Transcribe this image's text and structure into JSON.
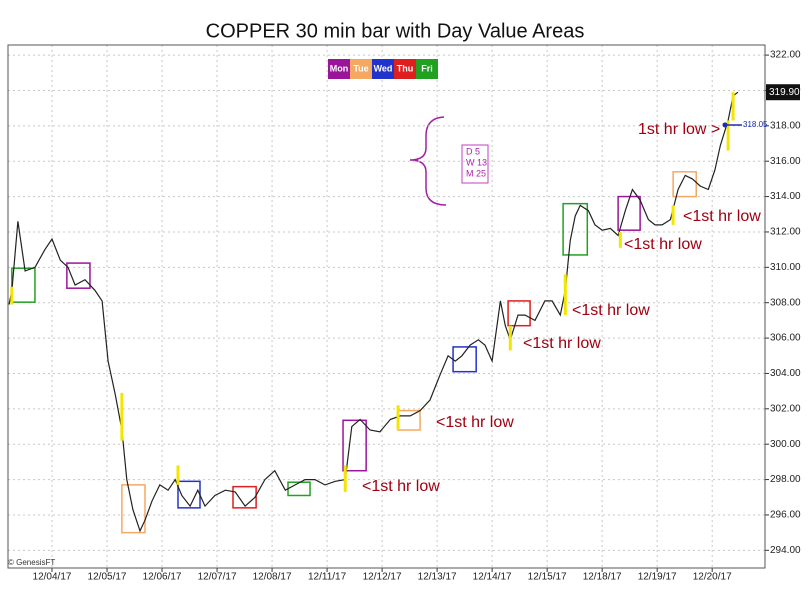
{
  "chart_data": {
    "type": "line",
    "title": "COPPER 30 min bar with Day Value Areas",
    "source": "© GenesisFT",
    "legend": [
      {
        "name": "Mon",
        "color": "#9a159a"
      },
      {
        "name": "Tue",
        "color": "#f5a862"
      },
      {
        "name": "Wed",
        "color": "#2233cc"
      },
      {
        "name": "Thu",
        "color": "#dd1f1f"
      },
      {
        "name": "Fri",
        "color": "#22a022"
      }
    ],
    "x": [
      -0.78,
      -0.73,
      -0.62,
      -0.49,
      -0.31,
      -0.13,
      0,
      0.15,
      0.29,
      0.42,
      0.6,
      0.78,
      0.91,
      1.02,
      1.15,
      1.27,
      1.36,
      1.47,
      1.6,
      1.69,
      1.82,
      1.96,
      2.11,
      2.24,
      2.36,
      2.51,
      2.65,
      2.78,
      2.96,
      3.15,
      3.33,
      3.51,
      3.69,
      3.87,
      4.05,
      4.24,
      4.42,
      4.6,
      4.78,
      4.96,
      5.15,
      5.33,
      5.45,
      5.6,
      5.78,
      5.96,
      6.15,
      6.33,
      6.51,
      6.69,
      6.87,
      7.05,
      7.2,
      7.33,
      7.45,
      7.6,
      7.75,
      7.87,
      8,
      8.15,
      8.24,
      8.33,
      8.47,
      8.6,
      8.78,
      8.96,
      9.09,
      9.24,
      9.33,
      9.42,
      9.51,
      9.6,
      9.75,
      9.87,
      10,
      10.15,
      10.29,
      10.42,
      10.55,
      10.69,
      10.84,
      10.96,
      11.09,
      11.24,
      11.38,
      11.51,
      11.64,
      11.78,
      11.93,
      12.05,
      12.15,
      12.29,
      12.38,
      12.47
    ],
    "series": [
      {
        "color": "#222222",
        "values": [
          307.9,
          308.7,
          312.6,
          309.8,
          310,
          311,
          311.6,
          310.4,
          310,
          309,
          309.3,
          308.7,
          308.1,
          304.7,
          302.8,
          300.8,
          298,
          296.3,
          295.1,
          295.7,
          296.8,
          297.7,
          297.4,
          298,
          297.1,
          296.5,
          297.4,
          296.5,
          297.1,
          297.4,
          297.3,
          296.5,
          297,
          298,
          298.5,
          297.4,
          297.7,
          298,
          298,
          297.7,
          297.9,
          298,
          301,
          301.4,
          300.8,
          300.7,
          301.4,
          301.6,
          301.6,
          301.9,
          302.5,
          303.9,
          305,
          304.7,
          305,
          305.6,
          305.9,
          305.6,
          304.7,
          308.1,
          306.7,
          305.9,
          307.3,
          307.3,
          307,
          308.1,
          308.1,
          307.3,
          308.7,
          311.5,
          312.9,
          313.5,
          313.2,
          312.4,
          312.1,
          312.2,
          311.8,
          313.2,
          314.4,
          313.8,
          312.7,
          312.4,
          312.4,
          312.7,
          314.4,
          315.2,
          315,
          314.6,
          314.4,
          315.5,
          316.9,
          318.3,
          319.7,
          319.9
        ]
      }
    ],
    "xlim": [
      -0.8,
      12.96
    ],
    "xticks": [
      {
        "value": 0,
        "label": "12/04/17"
      },
      {
        "value": 1,
        "label": "12/05/17"
      },
      {
        "value": 2,
        "label": "12/06/17"
      },
      {
        "value": 3,
        "label": "12/07/17"
      },
      {
        "value": 4,
        "label": "12/08/17"
      },
      {
        "value": 5,
        "label": "12/11/17"
      },
      {
        "value": 6,
        "label": "12/12/17"
      },
      {
        "value": 7,
        "label": "12/13/17"
      },
      {
        "value": 8,
        "label": "12/14/17"
      },
      {
        "value": 9,
        "label": "12/15/17"
      },
      {
        "value": 10,
        "label": "12/18/17"
      },
      {
        "value": 11,
        "label": "12/19/17"
      },
      {
        "value": 12,
        "label": "12/20/17"
      }
    ],
    "ylim": [
      293,
      322.57
    ],
    "yticks": [
      {
        "value": 294,
        "label": "294.00"
      },
      {
        "value": 296,
        "label": "296.00"
      },
      {
        "value": 298,
        "label": "298.00"
      },
      {
        "value": 300,
        "label": "300.00"
      },
      {
        "value": 302,
        "label": "302.00"
      },
      {
        "value": 304,
        "label": "304.00"
      },
      {
        "value": 306,
        "label": "306.00"
      },
      {
        "value": 308,
        "label": "308.00"
      },
      {
        "value": 310,
        "label": "310.00"
      },
      {
        "value": 312,
        "label": "312.00"
      },
      {
        "value": 314,
        "label": "314.00"
      },
      {
        "value": 316,
        "label": "316.00"
      },
      {
        "value": 318,
        "label": "318.00"
      },
      {
        "value": 320,
        "label": "320.00"
      },
      {
        "value": 322,
        "label": "322.00"
      }
    ],
    "grid": true,
    "value_areas": [
      {
        "color": "#22a022",
        "x0": -0.73,
        "x1": -0.31,
        "low": 308.03,
        "high": 309.95
      },
      {
        "color": "#9a159a",
        "x0": 0.27,
        "x1": 0.69,
        "low": 308.82,
        "high": 310.24
      },
      {
        "color": "#f5a862",
        "x0": 1.27,
        "x1": 1.69,
        "low": 295,
        "high": 297.7
      },
      {
        "color": "#2233cc",
        "x0": 2.29,
        "x1": 2.69,
        "low": 296.4,
        "high": 297.9
      },
      {
        "color": "#dd1f1f",
        "x0": 3.29,
        "x1": 3.71,
        "low": 296.4,
        "high": 297.6
      },
      {
        "color": "#22a022",
        "x0": 4.29,
        "x1": 4.69,
        "low": 297.1,
        "high": 297.85
      },
      {
        "color": "#9a159a",
        "x0": 5.29,
        "x1": 5.71,
        "low": 298.5,
        "high": 301.35
      },
      {
        "color": "#f5a862",
        "x0": 6.29,
        "x1": 6.69,
        "low": 300.8,
        "high": 301.9
      },
      {
        "color": "#2233cc",
        "x0": 7.29,
        "x1": 7.71,
        "low": 304.1,
        "high": 305.5
      },
      {
        "color": "#dd1f1f",
        "x0": 8.29,
        "x1": 8.69,
        "low": 306.7,
        "high": 308.1
      },
      {
        "color": "#22a022",
        "x0": 9.29,
        "x1": 9.73,
        "low": 310.7,
        "high": 313.6
      },
      {
        "color": "#9a159a",
        "x0": 10.29,
        "x1": 10.69,
        "low": 312.1,
        "high": 314
      },
      {
        "color": "#f5a862",
        "x0": 11.29,
        "x1": 11.71,
        "low": 314,
        "high": 315.4
      }
    ],
    "first_hour_color": "#f2e600",
    "first_hour_bars": [
      {
        "x": -0.73,
        "low": 307.9,
        "high": 308.9
      },
      {
        "x": 1.27,
        "low": 300.2,
        "high": 302.9
      },
      {
        "x": 2.29,
        "low": 297.7,
        "high": 298.8
      },
      {
        "x": 5.33,
        "low": 297.3,
        "high": 298.8
      },
      {
        "x": 6.29,
        "low": 300.8,
        "high": 302.2
      },
      {
        "x": 8.33,
        "low": 305.3,
        "high": 306.7
      },
      {
        "x": 9.33,
        "low": 307.3,
        "high": 309.6
      },
      {
        "x": 10.33,
        "low": 311.1,
        "high": 312
      },
      {
        "x": 11.29,
        "low": 312.4,
        "high": 313.5
      },
      {
        "x": 12.29,
        "low": 316.6,
        "high": 318.3
      },
      {
        "x": 12.38,
        "low": 318.3,
        "high": 319.9
      }
    ],
    "annotations": [
      "1st hr low >",
      "<1st hr low",
      "<1st hr low",
      "<1st hr low",
      "<1st hr low",
      "<1st hr low",
      "<1st hr low"
    ],
    "note_box": [
      "D 5",
      "W 13",
      "M 25"
    ],
    "last_price": {
      "value": 319.9,
      "label": "319.90"
    },
    "level": {
      "value": 318.05,
      "label": "318.05"
    }
  }
}
